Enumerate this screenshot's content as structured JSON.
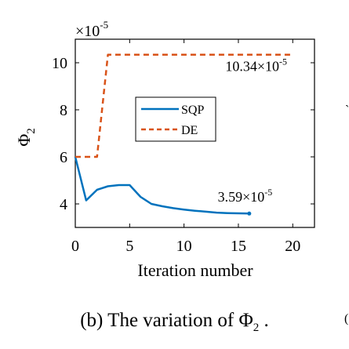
{
  "chart_data": {
    "type": "line",
    "xlabel": "Iteration number",
    "ylabel": "Φ",
    "ylabel_sub": "2",
    "exponent_label": "×10",
    "exponent_power": "-5",
    "xlim": [
      0,
      22
    ],
    "ylim": [
      3,
      11
    ],
    "xticks": [
      0,
      5,
      10,
      15,
      20
    ],
    "yticks": [
      4,
      6,
      8,
      10
    ],
    "xtick_labels": [
      "0",
      "5",
      "10",
      "15",
      "20"
    ],
    "ytick_labels": [
      "4",
      "6",
      "8",
      "10"
    ],
    "grid": false,
    "legend_position": "upper-center",
    "series": [
      {
        "name": "SQP",
        "color": "#0072BD",
        "style": "solid",
        "x": [
          0,
          1,
          2,
          3,
          4,
          5,
          6,
          7,
          8,
          9,
          10,
          11,
          12,
          13,
          14,
          15,
          16
        ],
        "y": [
          6.0,
          4.15,
          4.6,
          4.75,
          4.8,
          4.8,
          4.3,
          4.0,
          3.9,
          3.82,
          3.76,
          3.71,
          3.67,
          3.63,
          3.61,
          3.6,
          3.59
        ]
      },
      {
        "name": "DE",
        "color": "#D95319",
        "style": "dashed",
        "x": [
          0,
          1,
          2,
          3,
          4,
          5,
          10,
          15,
          20
        ],
        "y": [
          6.0,
          6.0,
          6.0,
          10.34,
          10.34,
          10.34,
          10.34,
          10.34,
          10.34
        ]
      }
    ],
    "annotations": [
      {
        "mantissa": "10.34×10",
        "power": "-5",
        "x": 13.8,
        "y": 9.65
      },
      {
        "mantissa": "3.59×10",
        "power": "-5",
        "x": 13.1,
        "y": 4.1
      }
    ]
  },
  "caption": {
    "text": "(b) The variation of  Φ",
    "sub": "2",
    "end": " ."
  },
  "stray_marks": [
    "(",
    "`"
  ]
}
